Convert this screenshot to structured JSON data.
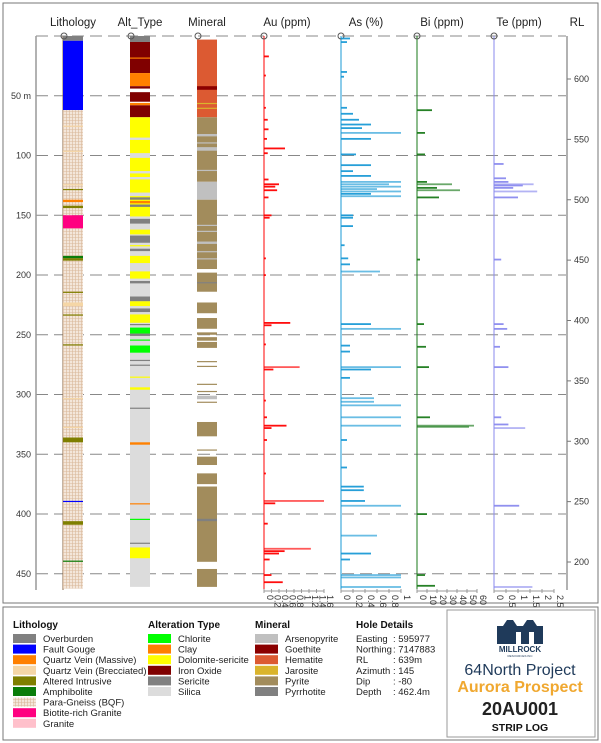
{
  "header": {
    "columns": [
      "Lithology",
      "Alt_Type",
      "Mineral",
      "Au (ppm)",
      "As (%)",
      "Bi (ppm)",
      "Te (ppm)",
      "RL"
    ]
  },
  "depth_axis": {
    "unit_label": "50 m",
    "ticks": [
      50,
      100,
      150,
      200,
      250,
      300,
      350,
      400,
      450
    ]
  },
  "rl_axis": {
    "ticks": [
      600,
      550,
      500,
      450,
      400,
      350,
      300,
      250,
      200
    ]
  },
  "legend": {
    "lithology": {
      "title": "Lithology",
      "items": [
        {
          "label": "Overburden",
          "color": "#808080"
        },
        {
          "label": "Fault Gouge",
          "color": "#0000ff"
        },
        {
          "label": "Quartz Vein (Massive)",
          "color": "#ff8000"
        },
        {
          "label": "Quartz Vein (Brecciated)",
          "color": "#f5d6a6"
        },
        {
          "label": "Altered Intrusive",
          "color": "#7f7f00"
        },
        {
          "label": "Amphibolite",
          "color": "#0a7d0a"
        },
        {
          "label": "Para-Gneiss (BQF)",
          "color": "#f2e4d8"
        },
        {
          "label": "Biotite-rich Granite",
          "color": "#ff0080"
        },
        {
          "label": "Granite",
          "color": "#ffc0cb"
        }
      ]
    },
    "alteration": {
      "title": "Alteration Type",
      "items": [
        {
          "label": "Chlorite",
          "color": "#00ff00"
        },
        {
          "label": "Clay",
          "color": "#ff8000"
        },
        {
          "label": "Dolomite-sericite",
          "color": "#ffff00"
        },
        {
          "label": "Iron Oxide",
          "color": "#800000"
        },
        {
          "label": "Sericite",
          "color": "#808080"
        },
        {
          "label": "Silica",
          "color": "#dcdcdc"
        }
      ]
    },
    "mineral": {
      "title": "Mineral",
      "items": [
        {
          "label": "Arsenopyrite",
          "color": "#c0c0c0"
        },
        {
          "label": "Goethite",
          "color": "#8b0000"
        },
        {
          "label": "Hematite",
          "color": "#dc5a32"
        },
        {
          "label": "Jarosite",
          "color": "#dab42c"
        },
        {
          "label": "Pyrite",
          "color": "#a28c5c"
        },
        {
          "label": "Pyrrhotite",
          "color": "#808080"
        }
      ]
    },
    "hole_details": {
      "title": "Hole Details",
      "rows": [
        {
          "k": "Easting",
          "v": ": 595977"
        },
        {
          "k": "Northing",
          "v": ": 7147883"
        },
        {
          "k": "RL",
          "v": ": 639m"
        },
        {
          "k": "Azimuth",
          "v": ": 145"
        },
        {
          "k": "Dip",
          "v": ": -80"
        },
        {
          "k": "Depth",
          "v": ": 462.4m"
        }
      ]
    }
  },
  "title_block": {
    "logo": "MILLROCK",
    "logo_sub": "RESOURCES INC",
    "project": "64North Project",
    "prospect": "Aurora Prospect",
    "hole_id": "20AU001",
    "log_type": "STRIP LOG",
    "project_color": "#1f3a5a",
    "prospect_color": "#f0a830"
  },
  "chart_data": {
    "type": "strip-log",
    "depth_range": [
      0,
      462.4
    ],
    "lithology": [
      [
        0,
        4,
        "Overburden"
      ],
      [
        4,
        62,
        "Fault Gouge"
      ],
      [
        62,
        150,
        "Para-Gneiss (BQF)"
      ],
      [
        75,
        76,
        "Quartz Vein (Brecciated)"
      ],
      [
        96,
        97,
        "Quartz Vein (Brecciated)"
      ],
      [
        124,
        125,
        "Quartz Vein (Brecciated)"
      ],
      [
        128,
        129,
        "Altered Intrusive"
      ],
      [
        137,
        139,
        "Quartz Vein (Massive)"
      ],
      [
        142,
        144,
        "Altered Intrusive"
      ],
      [
        150,
        161,
        "Biotite-rich Granite"
      ],
      [
        161,
        462.4,
        "Para-Gneiss (BQF)"
      ],
      [
        184,
        186,
        "Amphibolite"
      ],
      [
        186,
        188,
        "Altered Intrusive"
      ],
      [
        214,
        215,
        "Altered Intrusive"
      ],
      [
        223,
        226,
        "Quartz Vein (Brecciated)"
      ],
      [
        233,
        234,
        "Altered Intrusive"
      ],
      [
        258,
        259,
        "Altered Intrusive"
      ],
      [
        303,
        304,
        "Quartz Vein (Brecciated)"
      ],
      [
        327,
        328,
        "Quartz Vein (Brecciated)"
      ],
      [
        336,
        340,
        "Altered Intrusive"
      ],
      [
        389,
        390,
        "Fault Gouge"
      ],
      [
        406,
        409,
        "Altered Intrusive"
      ],
      [
        439,
        440,
        "Amphibolite"
      ]
    ],
    "alteration": [
      [
        0,
        5,
        "Sericite"
      ],
      [
        5,
        31,
        "Iron Oxide"
      ],
      [
        18,
        19,
        "Clay"
      ],
      [
        31,
        42,
        "Clay"
      ],
      [
        42,
        44,
        "Iron Oxide"
      ],
      [
        47,
        55,
        "Iron Oxide"
      ],
      [
        56,
        58,
        "Clay"
      ],
      [
        58,
        68,
        "Iron Oxide"
      ],
      [
        68,
        150,
        "Dolomite-sericite"
      ],
      [
        85,
        87,
        "Silica"
      ],
      [
        98,
        102,
        "Silica"
      ],
      [
        113,
        115,
        "Silica"
      ],
      [
        118,
        120,
        "Silica"
      ],
      [
        131,
        134,
        "Silica"
      ],
      [
        135,
        137,
        "Sericite"
      ],
      [
        138,
        140,
        "Clay"
      ],
      [
        141,
        143,
        "Sericite"
      ],
      [
        150,
        461,
        "Silica"
      ],
      [
        148,
        151,
        "Dolomite-sericite"
      ],
      [
        153,
        157,
        "Sericite"
      ],
      [
        162,
        166,
        "Dolomite-sericite"
      ],
      [
        167,
        173,
        "Sericite"
      ],
      [
        175,
        176,
        "Dolomite-sericite"
      ],
      [
        178,
        180,
        "Sericite"
      ],
      [
        184,
        190,
        "Dolomite-sericite"
      ],
      [
        197,
        203,
        "Dolomite-sericite"
      ],
      [
        205,
        207,
        "Sericite"
      ],
      [
        218,
        222,
        "Sericite"
      ],
      [
        222,
        226,
        "Dolomite-sericite"
      ],
      [
        228,
        231,
        "Sericite"
      ],
      [
        233,
        240,
        "Dolomite-sericite"
      ],
      [
        241,
        242,
        "Sericite"
      ],
      [
        244,
        246,
        "Chlorite"
      ],
      [
        246,
        249,
        "Chlorite"
      ],
      [
        249,
        251,
        "Sericite"
      ],
      [
        254,
        255,
        "Chlorite"
      ],
      [
        259,
        265,
        "Chlorite"
      ],
      [
        271,
        272,
        "Sericite"
      ],
      [
        275,
        276,
        "Sericite"
      ],
      [
        285,
        286,
        "Dolomite-sericite"
      ],
      [
        294,
        296,
        "Dolomite-sericite"
      ],
      [
        311,
        312,
        "Sericite"
      ],
      [
        340,
        342,
        "Clay"
      ],
      [
        391,
        392,
        "Clay"
      ],
      [
        404,
        405,
        "Chlorite"
      ],
      [
        424,
        425,
        "Sericite"
      ],
      [
        428,
        437,
        "Dolomite-sericite"
      ]
    ],
    "mineral": [
      [
        3,
        68,
        "Hematite"
      ],
      [
        42,
        45,
        "Goethite"
      ],
      [
        56,
        57,
        "Jarosite"
      ],
      [
        60,
        61,
        "Jarosite"
      ],
      [
        68,
        122,
        "Pyrite"
      ],
      [
        82,
        84,
        "Arsenopyrite"
      ],
      [
        89,
        90,
        "Arsenopyrite"
      ],
      [
        93,
        96,
        "Arsenopyrite"
      ],
      [
        112,
        113,
        "Arsenopyrite"
      ],
      [
        122,
        137,
        "Arsenopyrite"
      ],
      [
        137,
        195,
        "Pyrite"
      ],
      [
        158,
        159,
        "Arsenopyrite"
      ],
      [
        163,
        164,
        "Arsenopyrite"
      ],
      [
        172,
        174,
        "Arsenopyrite"
      ],
      [
        180,
        181,
        "Arsenopyrite"
      ],
      [
        186,
        187,
        "Arsenopyrite"
      ],
      [
        198,
        214,
        "Pyrite"
      ],
      [
        206,
        207,
        "Pyrrhotite"
      ],
      [
        223,
        232,
        "Pyrite"
      ],
      [
        236,
        245,
        "Pyrite"
      ],
      [
        248,
        250,
        "Pyrite"
      ],
      [
        252,
        255,
        "Pyrite"
      ],
      [
        256,
        261,
        "Pyrite"
      ],
      [
        272,
        273,
        "Pyrite"
      ],
      [
        276,
        277,
        "Pyrite"
      ],
      [
        291,
        292,
        "Pyrite"
      ],
      [
        297,
        298,
        "Pyrite"
      ],
      [
        301,
        304,
        "Arsenopyrite"
      ],
      [
        306,
        307,
        "Pyrite"
      ],
      [
        323,
        335,
        "Pyrite"
      ],
      [
        346,
        347,
        "Pyrite"
      ],
      [
        352,
        359,
        "Pyrite"
      ],
      [
        366,
        375,
        "Pyrite"
      ],
      [
        377,
        440,
        "Pyrite"
      ],
      [
        404,
        406,
        "Pyrrhotite"
      ],
      [
        446,
        461,
        "Pyrite"
      ]
    ],
    "assays": [
      {
        "name": "Au (ppm)",
        "color": "#ff0000",
        "range": [
          0,
          1.6
        ],
        "ticks": [
          0,
          0.2,
          0.4,
          0.6,
          0.8,
          1.0,
          1.2,
          1.4,
          1.6
        ],
        "points": [
          [
            17,
            0.13
          ],
          [
            33,
            0.05
          ],
          [
            60,
            0.05
          ],
          [
            70,
            0.1
          ],
          [
            78,
            0.12
          ],
          [
            86,
            0.08
          ],
          [
            94,
            0.56
          ],
          [
            98,
            0.1
          ],
          [
            120,
            0.12
          ],
          [
            124,
            0.4
          ],
          [
            126,
            0.3
          ],
          [
            129,
            0.35
          ],
          [
            135,
            0.12
          ],
          [
            150,
            0.2
          ],
          [
            152,
            0.15
          ],
          [
            186,
            0.05
          ],
          [
            200,
            0.05
          ],
          [
            240,
            0.7
          ],
          [
            242,
            0.2
          ],
          [
            258,
            0.05
          ],
          [
            277,
            0.95
          ],
          [
            279,
            0.25
          ],
          [
            305,
            0.05
          ],
          [
            319,
            0.08
          ],
          [
            326,
            0.6
          ],
          [
            328,
            0.2
          ],
          [
            338,
            0.08
          ],
          [
            366,
            0.05
          ],
          [
            389,
            1.6
          ],
          [
            391,
            0.3
          ],
          [
            408,
            0.1
          ],
          [
            429,
            1.25
          ],
          [
            431,
            0.55
          ],
          [
            433,
            0.4
          ],
          [
            438,
            0.15
          ],
          [
            451,
            0.2
          ],
          [
            457,
            0.5
          ]
        ]
      },
      {
        "name": "As (%)",
        "color": "#1a9ad6",
        "range": [
          0,
          1
        ],
        "ticks": [
          0,
          0.2,
          0.4,
          0.6,
          0.8,
          1
        ],
        "points": [
          [
            2,
            0.15
          ],
          [
            5,
            0.1
          ],
          [
            30,
            0.1
          ],
          [
            34,
            0.05
          ],
          [
            60,
            0.1
          ],
          [
            65,
            0.2
          ],
          [
            70,
            0.3
          ],
          [
            74,
            0.5
          ],
          [
            77,
            0.35
          ],
          [
            81,
            1.0
          ],
          [
            86,
            0.5
          ],
          [
            99,
            0.25
          ],
          [
            108,
            0.5
          ],
          [
            113,
            0.2
          ],
          [
            117,
            0.5
          ],
          [
            122,
            1.0
          ],
          [
            124,
            0.8
          ],
          [
            126,
            1.0
          ],
          [
            128,
            0.6
          ],
          [
            130,
            1.0
          ],
          [
            132,
            0.5
          ],
          [
            134,
            1.0
          ],
          [
            150,
            0.2
          ],
          [
            152,
            0.2
          ],
          [
            159,
            0.2
          ],
          [
            175,
            0.06
          ],
          [
            186,
            0.12
          ],
          [
            191,
            0.15
          ],
          [
            197,
            0.65
          ],
          [
            241,
            0.5
          ],
          [
            245,
            1.0
          ],
          [
            259,
            0.15
          ],
          [
            264,
            0.15
          ],
          [
            277,
            1.0
          ],
          [
            279,
            0.5
          ],
          [
            286,
            0.15
          ],
          [
            303,
            0.55
          ],
          [
            306,
            0.55
          ],
          [
            309,
            1.0
          ],
          [
            319,
            1.0
          ],
          [
            326,
            1.0
          ],
          [
            338,
            0.1
          ],
          [
            361,
            0.1
          ],
          [
            377,
            0.38
          ],
          [
            380,
            0.38
          ],
          [
            389,
            0.4
          ],
          [
            393,
            1.0
          ],
          [
            418,
            0.6
          ],
          [
            433,
            0.5
          ],
          [
            438,
            0.15
          ],
          [
            451,
            1.0
          ],
          [
            453,
            1.0
          ],
          [
            461,
            1.0
          ]
        ]
      },
      {
        "name": "Bi (ppm)",
        "color": "#1a7a1a",
        "range": [
          0,
          60
        ],
        "ticks": [
          0,
          10,
          20,
          30,
          40,
          50,
          60
        ],
        "points": [
          [
            62,
            15
          ],
          [
            81,
            8
          ],
          [
            99,
            8
          ],
          [
            122,
            10
          ],
          [
            124,
            35
          ],
          [
            127,
            20
          ],
          [
            129,
            43
          ],
          [
            135,
            22
          ],
          [
            187,
            3
          ],
          [
            241,
            7
          ],
          [
            260,
            9
          ],
          [
            277,
            12
          ],
          [
            319,
            13
          ],
          [
            326,
            57
          ],
          [
            327,
            52
          ],
          [
            400,
            10
          ],
          [
            451,
            8
          ],
          [
            460,
            18
          ]
        ]
      },
      {
        "name": "Te (ppm)",
        "color": "#8a8aee",
        "range": [
          0,
          2.5
        ],
        "ticks": [
          0,
          0.5,
          1,
          1.5,
          2,
          2.5
        ],
        "points": [
          [
            107,
            0.4
          ],
          [
            119,
            0.5
          ],
          [
            122,
            0.6
          ],
          [
            124,
            1.65
          ],
          [
            125,
            1.2
          ],
          [
            127,
            0.8
          ],
          [
            130,
            1.8
          ],
          [
            135,
            1.0
          ],
          [
            187,
            0.3
          ],
          [
            241,
            0.4
          ],
          [
            245,
            0.55
          ],
          [
            260,
            0.25
          ],
          [
            277,
            0.6
          ],
          [
            319,
            0.3
          ],
          [
            325,
            0.6
          ],
          [
            328,
            1.3
          ],
          [
            393,
            1.05
          ],
          [
            461,
            1.6
          ]
        ]
      }
    ]
  }
}
